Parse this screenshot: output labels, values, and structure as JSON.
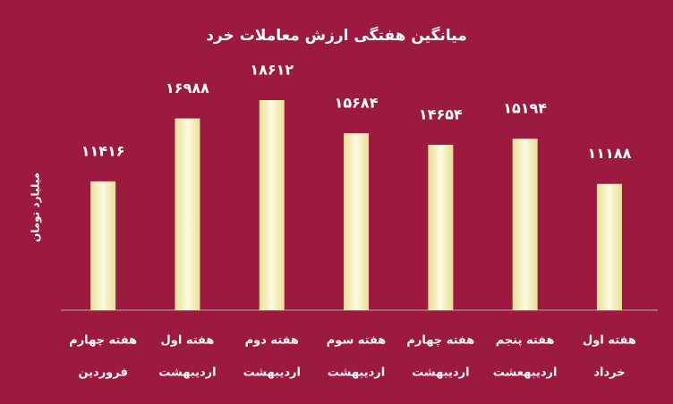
{
  "chart_data": {
    "type": "bar",
    "title": "میانگین هفتگی ارزش معاملات خرد",
    "y_label": "میلیارد تومان",
    "categories": [
      [
        "هفته چهارم",
        "فروردین"
      ],
      [
        "هفته اول",
        "اردیبهشت"
      ],
      [
        "هفته دوم",
        "اردیبهشت"
      ],
      [
        "هفته سوم",
        "اردیبهشت"
      ],
      [
        "هفته چهارم",
        "اردیبهشت"
      ],
      [
        "هفته پنجم",
        "اردیبهعشت"
      ],
      [
        "هفته اول",
        "خرداد"
      ]
    ],
    "values": [
      11416,
      16988,
      18612,
      15684,
      14654,
      15194,
      11188
    ],
    "value_labels": [
      "۱۱۴۱۶",
      "۱۶۹۸۸",
      "۱۸۶۱۲",
      "۱۵۶۸۴",
      "۱۴۶۵۴",
      "۱۵۱۹۴",
      "۱۱۱۸۸"
    ],
    "color": "#f3efb4"
  }
}
